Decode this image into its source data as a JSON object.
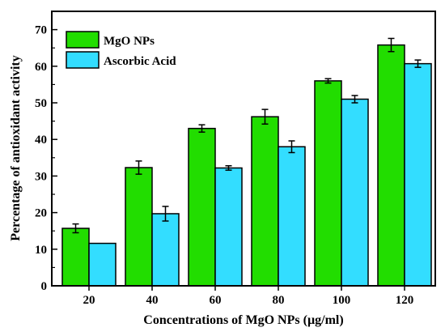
{
  "chart_data": {
    "type": "bar",
    "title": "",
    "xlabel": "Concentrations of MgO NPs (µg/ml)",
    "ylabel": "Percentage of antioxidant activity",
    "categories": [
      "20",
      "40",
      "60",
      "80",
      "100",
      "120"
    ],
    "yticks": [
      "0",
      "10",
      "20",
      "30",
      "40",
      "50",
      "60",
      "70"
    ],
    "ylim": [
      0,
      75
    ],
    "grid": false,
    "legend_position": "top-left",
    "series": [
      {
        "name": "MgO NPs",
        "values": [
          15.7,
          32.3,
          43.0,
          46.2,
          56.0,
          65.8
        ],
        "errors": [
          1.2,
          1.8,
          1.0,
          2.0,
          0.6,
          1.8
        ],
        "color": "#22dd00"
      },
      {
        "name": "Ascorbic Acid",
        "values": [
          11.6,
          19.7,
          32.2,
          38.0,
          51.0,
          60.7
        ],
        "errors": [
          0.0,
          2.0,
          0.6,
          1.6,
          1.0,
          1.0
        ],
        "color": "#33ddff"
      }
    ]
  }
}
